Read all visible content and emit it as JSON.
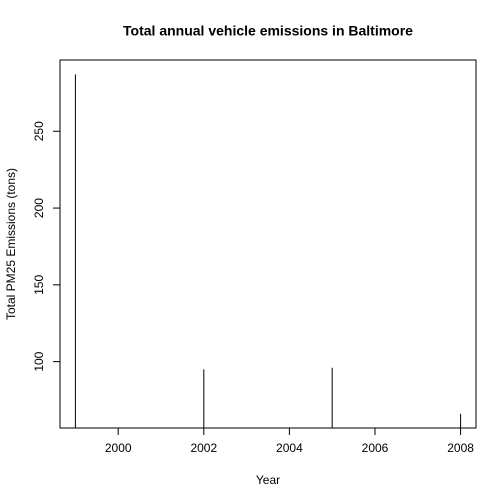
{
  "chart_data": {
    "type": "h",
    "title": "Total annual vehicle emissions in Baltimore",
    "x_label": "Year",
    "y_label": "Total PM25 Emissions (tons)",
    "x": [
      1999,
      2002,
      2005,
      2008
    ],
    "values": [
      287,
      95,
      96,
      66
    ],
    "color": "#000000",
    "xlim": [
      1998.64,
      2008.36
    ],
    "xticks": [
      2000,
      2002,
      2004,
      2006,
      2008
    ],
    "ylim": [
      56.8,
      296.4
    ],
    "yticks": [
      100,
      150,
      200,
      250
    ]
  }
}
